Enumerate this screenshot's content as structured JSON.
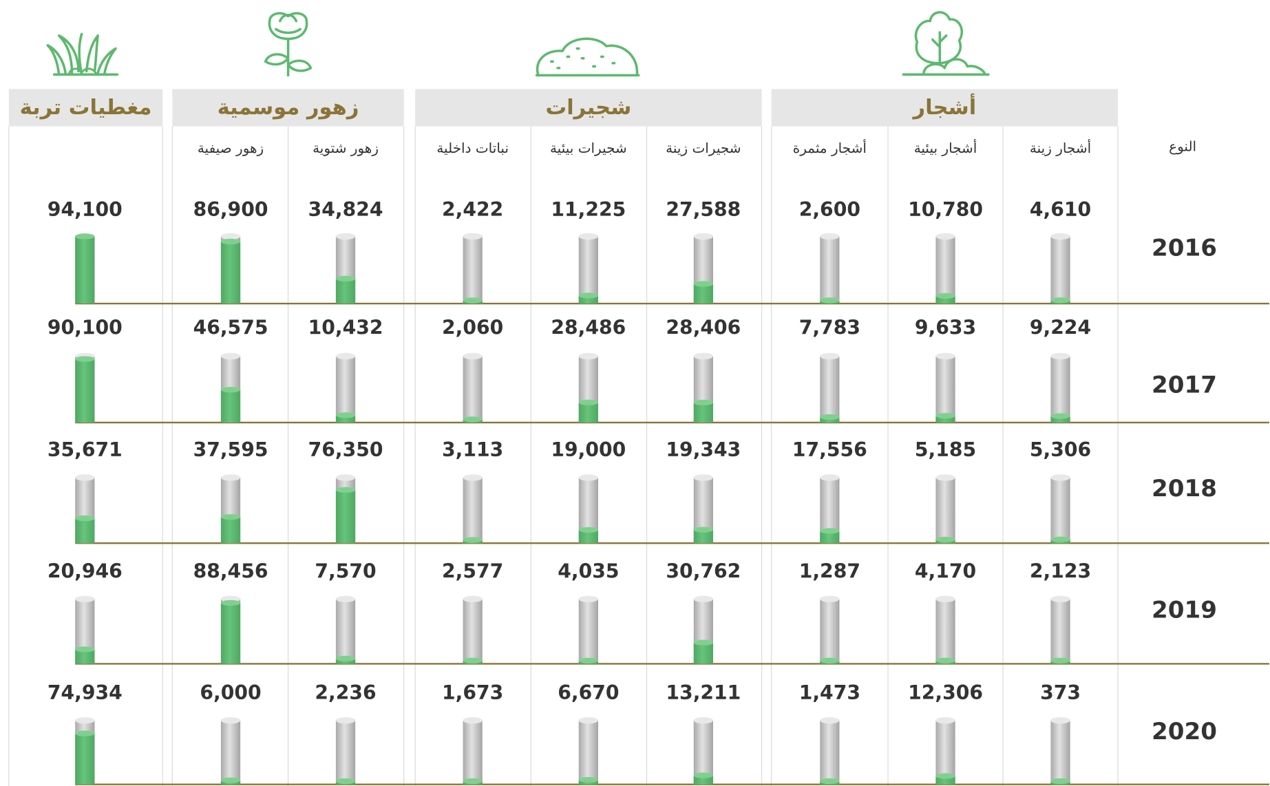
{
  "type_label": "النوع",
  "groups": [
    {
      "title": "أشجار",
      "columns": [
        0,
        1,
        2
      ]
    },
    {
      "title": "شجيرات",
      "columns": [
        3,
        4,
        5
      ]
    },
    {
      "title": "زهور موسمية",
      "columns": [
        6,
        7
      ]
    },
    {
      "title": "مغطيات تربة",
      "columns": [
        8
      ]
    }
  ],
  "columns": [
    "أشجار زينة",
    "أشجار بيئية",
    "أشجار مثمرة",
    "شجيرات زينة",
    "شجيرات بيئية",
    "نباتات داخلية",
    "زهور شتوية",
    "زهور صيفية",
    null
  ],
  "rows": [
    {
      "year": "2016",
      "values": [
        4610,
        10780,
        2600,
        27588,
        11225,
        2422,
        34824,
        86900,
        94100
      ],
      "value_labels": [
        "4,610",
        "10,780",
        "2,600",
        "27,588",
        "11,225",
        "2,422",
        "34,824",
        "86,900",
        "94,100"
      ]
    },
    {
      "year": "2017",
      "values": [
        9224,
        9633,
        7783,
        28406,
        28486,
        2060,
        10432,
        46575,
        90100
      ],
      "value_labels": [
        "9,224",
        "9,633",
        "7,783",
        "28,406",
        "28,486",
        "2,060",
        "10,432",
        "46,575",
        "90,100"
      ]
    },
    {
      "year": "2018",
      "values": [
        5306,
        5185,
        17556,
        19343,
        19000,
        3113,
        76350,
        37595,
        35671
      ],
      "value_labels": [
        "5,306",
        "5,185",
        "17,556",
        "19,343",
        "19,000",
        "3,113",
        "76,350",
        "37,595",
        "35,671"
      ]
    },
    {
      "year": "2019",
      "values": [
        2123,
        4170,
        1287,
        30762,
        4035,
        2577,
        7570,
        88456,
        20946
      ],
      "value_labels": [
        "2,123",
        "4,170",
        "1,287",
        "30,762",
        "4,035",
        "2,577",
        "7,570",
        "88,456",
        "20,946"
      ]
    },
    {
      "year": "2020",
      "values": [
        373,
        12306,
        1473,
        13211,
        6670,
        1673,
        2236,
        6000,
        74934
      ],
      "value_labels": [
        "373",
        "12,306",
        "1,473",
        "13,211",
        "6,670",
        "1,673",
        "2,236",
        "6,000",
        "74,934"
      ]
    }
  ]
}
